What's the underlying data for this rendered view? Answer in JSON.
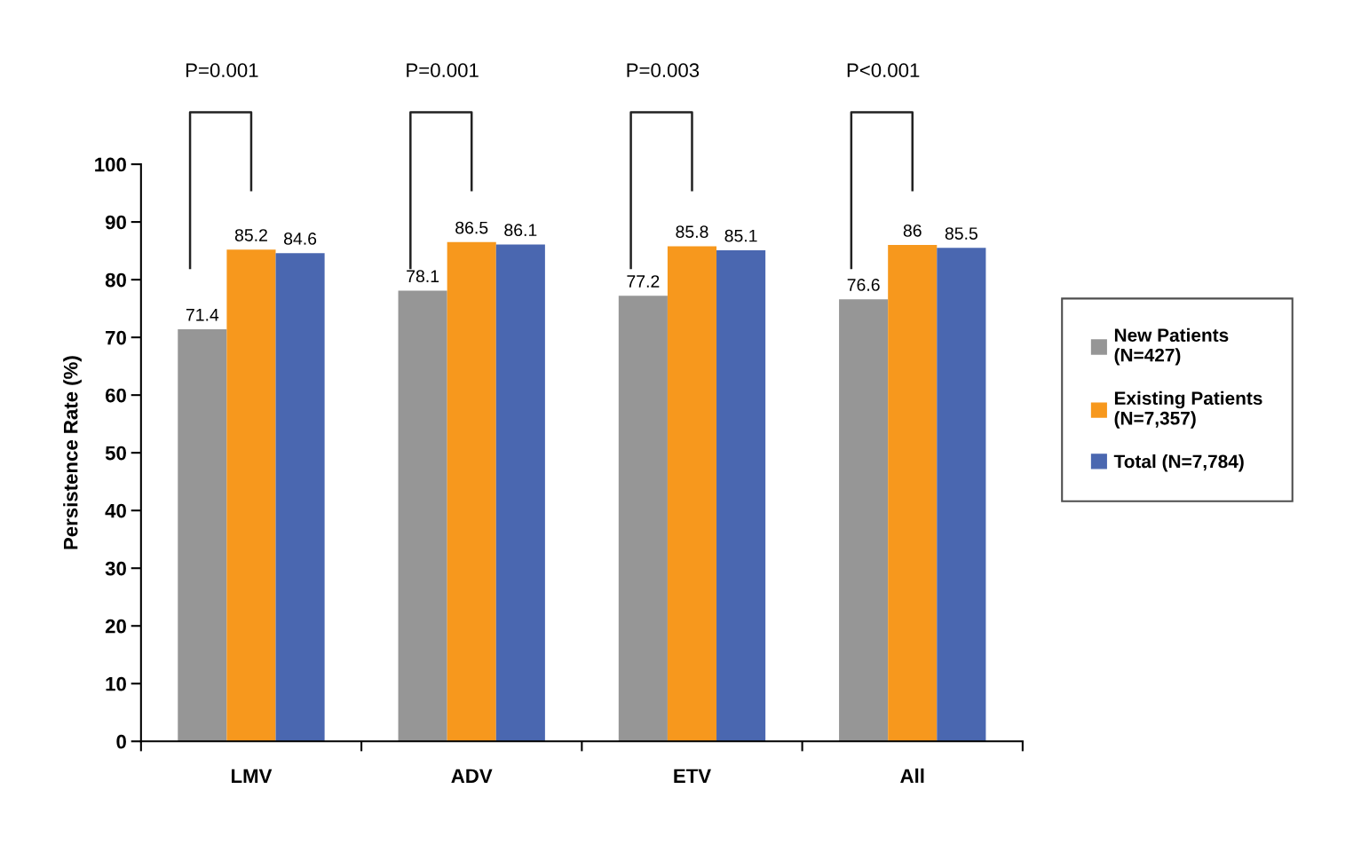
{
  "chart_data": {
    "type": "bar",
    "ylabel": "Persistence Rate (%)",
    "categories": [
      "LMV",
      "ADV",
      "ETV",
      "All"
    ],
    "series": [
      {
        "name": "New Patients\n(N=427)",
        "color": "#969696",
        "values": [
          71.4,
          78.1,
          77.2,
          76.6
        ]
      },
      {
        "name": "Existing Patients\n(N=7,357)",
        "color": "#f7981d",
        "values": [
          85.2,
          86.5,
          85.8,
          86
        ]
      },
      {
        "name": "Total (N=7,784)",
        "color": "#4a67b0",
        "values": [
          84.6,
          86.1,
          85.1,
          85.5
        ]
      }
    ],
    "ylim": [
      0,
      100
    ],
    "yticks": [
      0,
      10,
      20,
      30,
      40,
      50,
      60,
      70,
      80,
      90,
      100
    ],
    "data_labels": true,
    "legend": "right",
    "grid": false,
    "annotations": [
      "P=0.001",
      "P=0.001",
      "P=0.003",
      "P<0.001"
    ]
  }
}
